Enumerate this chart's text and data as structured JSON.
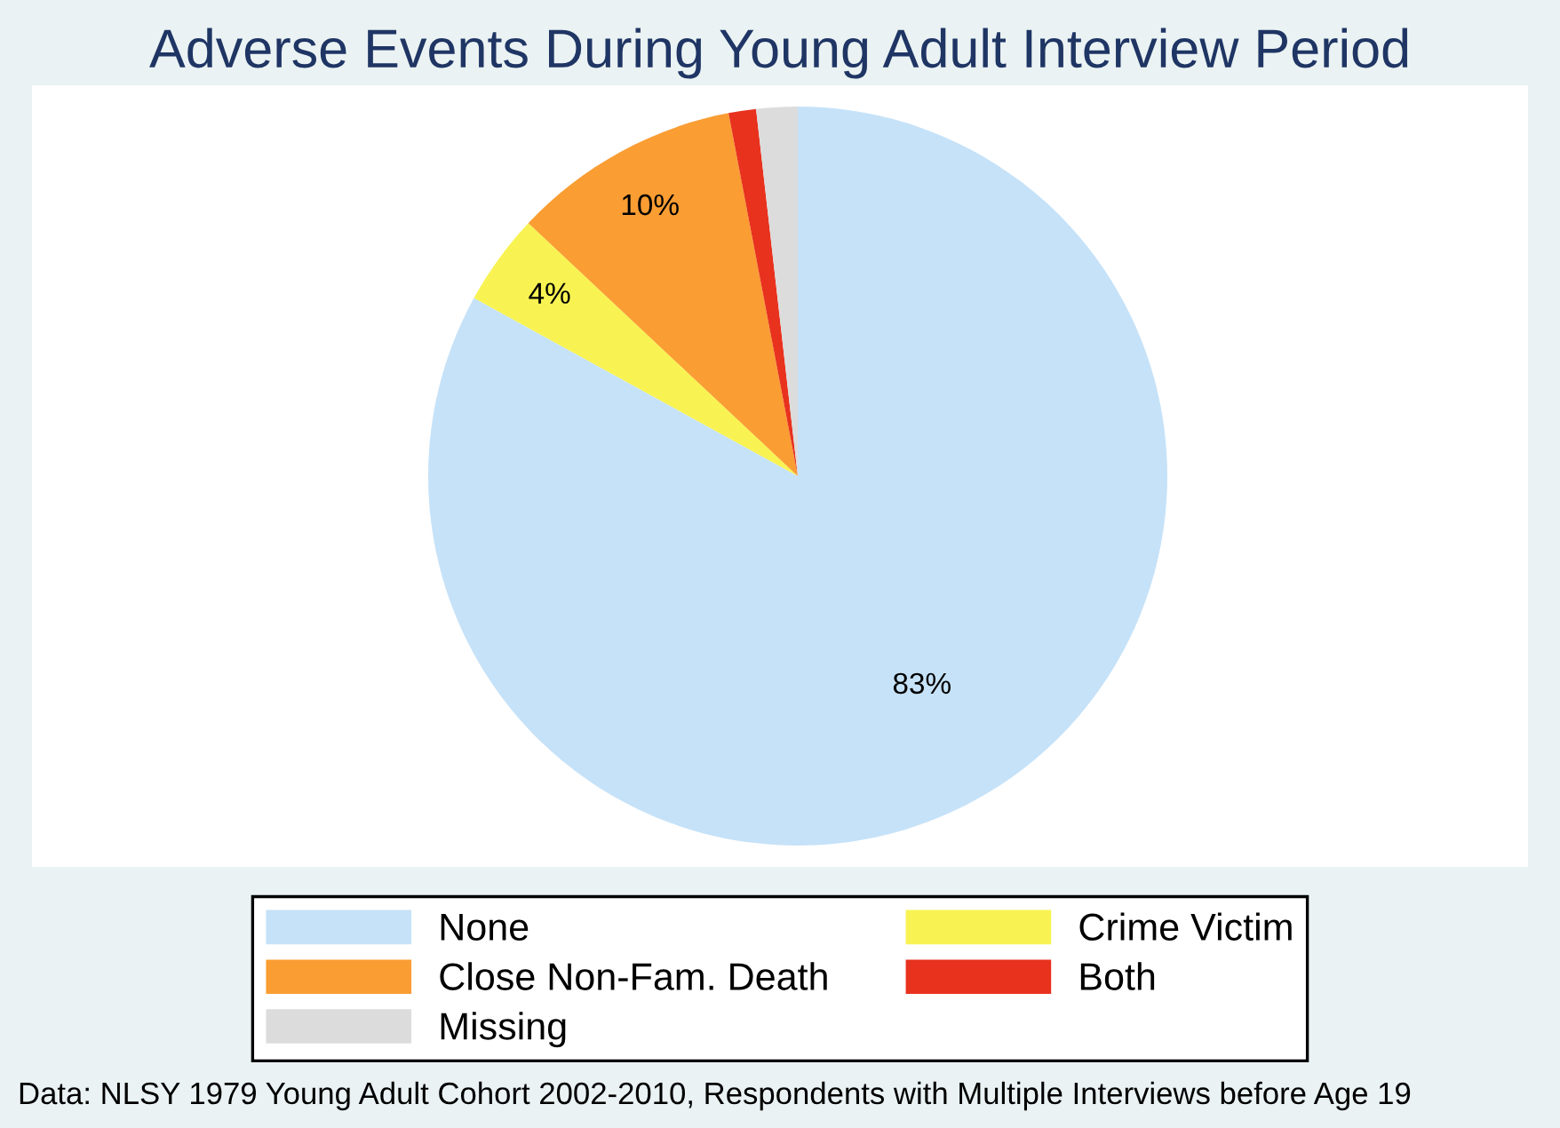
{
  "chart_data": {
    "type": "pie",
    "title": "Adverse Events During Young Adult Interview Period",
    "categories": [
      "None",
      "Crime Victim",
      "Close Non-Fam. Death",
      "Both",
      "Missing"
    ],
    "values": [
      83,
      4,
      10,
      1.2,
      1.8
    ],
    "colors": [
      "#c6e2f8",
      "#f8f352",
      "#fa9d33",
      "#e8321e",
      "#dcdcdc"
    ],
    "value_labels": [
      "83%",
      "4%",
      "10%",
      null,
      null
    ],
    "legend": "bottom",
    "annotations": [
      "Data: NLSY 1979 Young Adult Cohort 2002-2010, Respondents with Multiple Interviews before Age 19"
    ]
  }
}
